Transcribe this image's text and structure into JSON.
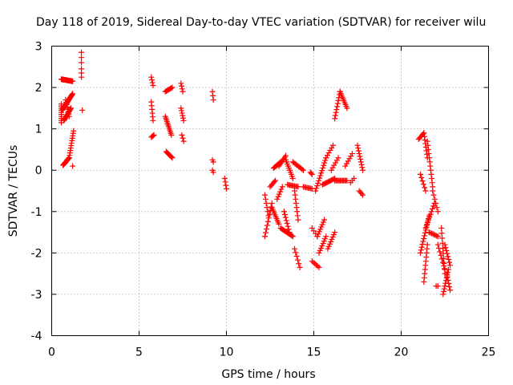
{
  "chart_data": {
    "type": "scatter",
    "title": "Day 118 of 2019, Sidereal Day-to-day VTEC variation (SDTVAR) for receiver wilu",
    "xlabel": "GPS time / hours",
    "ylabel": "SDTVAR / TECUs",
    "xlim": [
      0,
      25
    ],
    "ylim": [
      -4,
      3
    ],
    "xticks": [
      0,
      5,
      10,
      15,
      20,
      25
    ],
    "yticks": [
      -4,
      -3,
      -2,
      -1,
      0,
      1,
      2,
      3
    ],
    "grid": true,
    "marker": "+",
    "color": "#ff0000",
    "segments": [
      {
        "x0": 0.55,
        "y0": 2.2,
        "x1": 1.2,
        "y1": 2.15,
        "n": 26
      },
      {
        "x0": 0.55,
        "y0": 1.6,
        "x1": 0.55,
        "y1": 1.15,
        "n": 10
      },
      {
        "x0": 0.6,
        "y0": 1.45,
        "x1": 1.2,
        "y1": 1.85,
        "n": 24
      },
      {
        "x0": 0.7,
        "y0": 1.2,
        "x1": 1.1,
        "y1": 1.5,
        "n": 14
      },
      {
        "x0": 0.8,
        "y0": 1.7,
        "x1": 1.0,
        "y1": 1.3,
        "n": 8
      },
      {
        "x0": 0.65,
        "y0": 0.12,
        "x1": 1.0,
        "y1": 0.3,
        "n": 12
      },
      {
        "x0": 1.0,
        "y0": 0.3,
        "x1": 1.25,
        "y1": 0.95,
        "n": 12
      },
      {
        "x0": 1.2,
        "y0": 0.1,
        "x1": 1.2,
        "y1": 0.1,
        "n": 1
      },
      {
        "x0": 1.7,
        "y0": 2.85,
        "x1": 1.7,
        "y1": 2.6,
        "n": 3
      },
      {
        "x0": 1.7,
        "y0": 2.45,
        "x1": 1.7,
        "y1": 2.25,
        "n": 3
      },
      {
        "x0": 1.75,
        "y0": 1.45,
        "x1": 1.75,
        "y1": 1.45,
        "n": 1
      },
      {
        "x0": 5.7,
        "y0": 2.25,
        "x1": 5.8,
        "y1": 2.05,
        "n": 4
      },
      {
        "x0": 5.7,
        "y0": 1.65,
        "x1": 5.8,
        "y1": 1.2,
        "n": 6
      },
      {
        "x0": 5.7,
        "y0": 0.8,
        "x1": 5.85,
        "y1": 0.85,
        "n": 4
      },
      {
        "x0": 6.5,
        "y0": 1.9,
        "x1": 6.9,
        "y1": 2.0,
        "n": 8
      },
      {
        "x0": 6.5,
        "y0": 1.3,
        "x1": 6.85,
        "y1": 0.85,
        "n": 12
      },
      {
        "x0": 6.55,
        "y0": 0.45,
        "x1": 6.9,
        "y1": 0.3,
        "n": 8
      },
      {
        "x0": 7.4,
        "y0": 2.1,
        "x1": 7.5,
        "y1": 1.9,
        "n": 4
      },
      {
        "x0": 7.4,
        "y0": 1.5,
        "x1": 7.55,
        "y1": 1.2,
        "n": 6
      },
      {
        "x0": 7.45,
        "y0": 0.85,
        "x1": 7.55,
        "y1": 0.7,
        "n": 3
      },
      {
        "x0": 9.2,
        "y0": 1.9,
        "x1": 9.25,
        "y1": 1.7,
        "n": 3
      },
      {
        "x0": 9.2,
        "y0": 0.25,
        "x1": 9.25,
        "y1": 0.2,
        "n": 2
      },
      {
        "x0": 9.2,
        "y0": 0.0,
        "x1": 9.25,
        "y1": -0.05,
        "n": 2
      },
      {
        "x0": 9.9,
        "y0": -0.2,
        "x1": 10.0,
        "y1": -0.45,
        "n": 4
      },
      {
        "x0": 12.2,
        "y0": -1.6,
        "x1": 12.6,
        "y1": -0.8,
        "n": 10
      },
      {
        "x0": 12.2,
        "y0": -0.6,
        "x1": 12.4,
        "y1": -1.1,
        "n": 6
      },
      {
        "x0": 12.5,
        "y0": -0.4,
        "x1": 12.8,
        "y1": -0.25,
        "n": 6
      },
      {
        "x0": 12.6,
        "y0": -0.9,
        "x1": 13.0,
        "y1": -1.3,
        "n": 10
      },
      {
        "x0": 12.7,
        "y0": 0.05,
        "x1": 13.1,
        "y1": 0.2,
        "n": 8
      },
      {
        "x0": 12.9,
        "y0": -0.7,
        "x1": 13.2,
        "y1": -0.4,
        "n": 6
      },
      {
        "x0": 13.0,
        "y0": 0.1,
        "x1": 13.4,
        "y1": 0.35,
        "n": 8
      },
      {
        "x0": 13.1,
        "y0": -1.4,
        "x1": 13.8,
        "y1": -1.6,
        "n": 14
      },
      {
        "x0": 13.3,
        "y0": -1.0,
        "x1": 13.6,
        "y1": -1.5,
        "n": 8
      },
      {
        "x0": 13.4,
        "y0": 0.25,
        "x1": 13.8,
        "y1": -0.2,
        "n": 10
      },
      {
        "x0": 13.5,
        "y0": -0.35,
        "x1": 14.1,
        "y1": -0.4,
        "n": 10
      },
      {
        "x0": 13.8,
        "y0": 0.2,
        "x1": 14.4,
        "y1": 0.0,
        "n": 10
      },
      {
        "x0": 13.9,
        "y0": -1.9,
        "x1": 14.2,
        "y1": -2.35,
        "n": 6
      },
      {
        "x0": 13.9,
        "y0": -0.5,
        "x1": 14.1,
        "y1": -1.2,
        "n": 8
      },
      {
        "x0": 14.4,
        "y0": -0.4,
        "x1": 14.9,
        "y1": -0.45,
        "n": 8
      },
      {
        "x0": 14.8,
        "y0": -0.05,
        "x1": 14.9,
        "y1": -0.1,
        "n": 3
      },
      {
        "x0": 14.9,
        "y0": -1.4,
        "x1": 15.2,
        "y1": -1.6,
        "n": 4
      },
      {
        "x0": 14.9,
        "y0": -2.2,
        "x1": 15.3,
        "y1": -2.35,
        "n": 6
      },
      {
        "x0": 15.1,
        "y0": -0.5,
        "x1": 15.7,
        "y1": 0.3,
        "n": 14
      },
      {
        "x0": 15.2,
        "y0": -1.6,
        "x1": 15.6,
        "y1": -1.2,
        "n": 8
      },
      {
        "x0": 15.3,
        "y0": -2.0,
        "x1": 15.7,
        "y1": -1.6,
        "n": 8
      },
      {
        "x0": 15.5,
        "y0": -0.35,
        "x1": 16.2,
        "y1": -0.2,
        "n": 12
      },
      {
        "x0": 15.7,
        "y0": 0.3,
        "x1": 16.1,
        "y1": 0.6,
        "n": 6
      },
      {
        "x0": 15.8,
        "y0": -1.9,
        "x1": 16.2,
        "y1": -1.5,
        "n": 8
      },
      {
        "x0": 16.0,
        "y0": 0.0,
        "x1": 16.4,
        "y1": 0.3,
        "n": 6
      },
      {
        "x0": 16.2,
        "y0": -0.25,
        "x1": 16.9,
        "y1": -0.25,
        "n": 12
      },
      {
        "x0": 16.2,
        "y0": 1.25,
        "x1": 16.5,
        "y1": 1.9,
        "n": 10
      },
      {
        "x0": 16.5,
        "y0": 1.9,
        "x1": 16.9,
        "y1": 1.5,
        "n": 10
      },
      {
        "x0": 16.8,
        "y0": 0.1,
        "x1": 17.2,
        "y1": 0.4,
        "n": 6
      },
      {
        "x0": 17.1,
        "y0": -0.3,
        "x1": 17.3,
        "y1": -0.2,
        "n": 3
      },
      {
        "x0": 17.5,
        "y0": 0.6,
        "x1": 17.8,
        "y1": 0.0,
        "n": 10
      },
      {
        "x0": 17.6,
        "y0": -0.5,
        "x1": 17.8,
        "y1": -0.6,
        "n": 4
      },
      {
        "x0": 21.0,
        "y0": 0.75,
        "x1": 21.3,
        "y1": 0.9,
        "n": 6
      },
      {
        "x0": 21.3,
        "y0": 0.9,
        "x1": 21.5,
        "y1": 0.3,
        "n": 8
      },
      {
        "x0": 21.5,
        "y0": 0.7,
        "x1": 21.8,
        "y1": -0.4,
        "n": 12
      },
      {
        "x0": 21.1,
        "y0": -0.1,
        "x1": 21.4,
        "y1": -0.5,
        "n": 6
      },
      {
        "x0": 21.1,
        "y0": -2.0,
        "x1": 21.6,
        "y1": -1.1,
        "n": 14
      },
      {
        "x0": 21.3,
        "y0": -2.7,
        "x1": 21.5,
        "y1": -1.8,
        "n": 10
      },
      {
        "x0": 21.4,
        "y0": -1.4,
        "x1": 21.9,
        "y1": -0.8,
        "n": 10
      },
      {
        "x0": 21.6,
        "y0": -1.5,
        "x1": 22.1,
        "y1": -1.6,
        "n": 8
      },
      {
        "x0": 21.8,
        "y0": -0.5,
        "x1": 22.1,
        "y1": -1.0,
        "n": 6
      },
      {
        "x0": 22.0,
        "y0": -2.8,
        "x1": 22.1,
        "y1": -2.8,
        "n": 2
      },
      {
        "x0": 22.1,
        "y0": -1.8,
        "x1": 22.5,
        "y1": -2.4,
        "n": 8
      },
      {
        "x0": 22.3,
        "y0": -1.4,
        "x1": 22.5,
        "y1": -2.5,
        "n": 10
      },
      {
        "x0": 22.4,
        "y0": -3.0,
        "x1": 22.7,
        "y1": -2.4,
        "n": 10
      },
      {
        "x0": 22.5,
        "y0": -1.8,
        "x1": 22.8,
        "y1": -2.3,
        "n": 8
      },
      {
        "x0": 22.6,
        "y0": -2.5,
        "x1": 22.8,
        "y1": -2.9,
        "n": 6
      }
    ]
  }
}
